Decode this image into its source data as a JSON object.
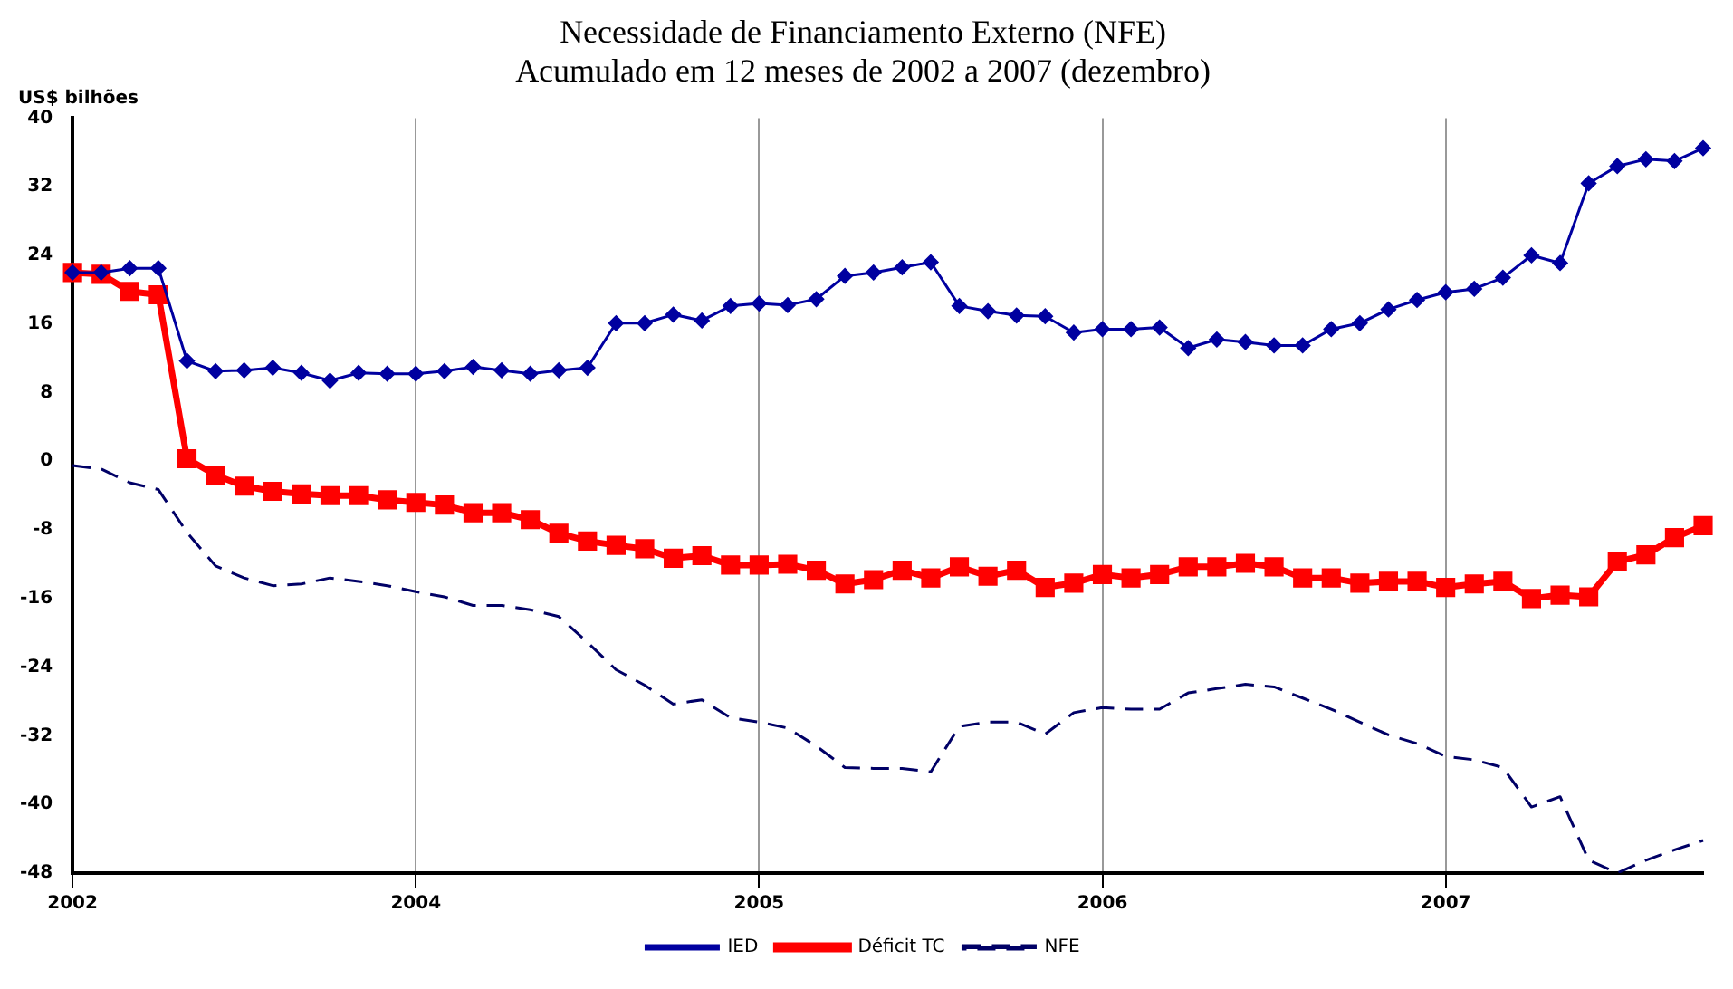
{
  "chart_data": {
    "type": "line",
    "title": "Necessidade de Financiamento Externo (NFE)",
    "subtitle": "Acumulado em 12 meses de 2002 a 2007 (dezembro)",
    "ylabel": "US$ bilhões",
    "categories": [
      "2002",
      null,
      null,
      null,
      null,
      null,
      null,
      null,
      null,
      null,
      null,
      null,
      "2004",
      null,
      null,
      null,
      null,
      null,
      null,
      null,
      null,
      null,
      null,
      null,
      "2005",
      null,
      null,
      null,
      null,
      null,
      null,
      null,
      null,
      null,
      null,
      null,
      "2006",
      null,
      null,
      null,
      null,
      null,
      null,
      null,
      null,
      null,
      null,
      null,
      "2007",
      null,
      null,
      null,
      null,
      null,
      null,
      null,
      null,
      null
    ],
    "series": [
      {
        "name": "IED",
        "color": "#0000a0",
        "marker": "diamond",
        "line_style": "solid",
        "values": [
          22.0,
          22.0,
          22.5,
          22.5,
          11.7,
          10.5,
          10.6,
          10.9,
          10.3,
          9.4,
          10.3,
          10.2,
          10.2,
          10.5,
          11.0,
          10.6,
          10.2,
          10.6,
          10.9,
          16.1,
          16.1,
          17.1,
          16.4,
          18.1,
          18.4,
          18.2,
          18.9,
          21.6,
          22.0,
          22.6,
          23.2,
          18.1,
          17.5,
          17.0,
          16.9,
          15.0,
          15.4,
          15.4,
          15.6,
          13.2,
          14.2,
          13.9,
          13.5,
          13.5,
          15.4,
          16.1,
          17.7,
          18.8,
          19.7,
          20.1,
          21.4,
          24.0,
          23.1,
          32.4,
          34.4,
          35.2,
          35.0,
          36.5
        ]
      },
      {
        "name": "Déficit TC",
        "color": "#ff0000",
        "marker": "square",
        "line_style": "solid",
        "values": [
          22.0,
          21.8,
          19.8,
          19.4,
          0.3,
          -1.6,
          -2.9,
          -3.5,
          -3.8,
          -4.0,
          -4.0,
          -4.5,
          -4.8,
          -5.1,
          -6.0,
          -6.0,
          -6.8,
          -8.4,
          -9.3,
          -9.8,
          -10.2,
          -11.3,
          -11.0,
          -12.1,
          -12.1,
          -12.0,
          -12.7,
          -14.3,
          -13.8,
          -12.7,
          -13.6,
          -12.3,
          -13.4,
          -12.7,
          -14.7,
          -14.2,
          -13.2,
          -13.6,
          -13.2,
          -12.3,
          -12.3,
          -11.9,
          -12.3,
          -13.6,
          -13.6,
          -14.2,
          -14.0,
          -14.0,
          -14.7,
          -14.3,
          -14.0,
          -16.0,
          -15.6,
          -15.8,
          -11.7,
          -10.9,
          -8.9,
          -7.5
        ]
      },
      {
        "name": "NFE",
        "color": "#000066",
        "marker": "none",
        "line_style": "dashed",
        "values": [
          -0.5,
          -0.9,
          -2.5,
          -3.3,
          -8.3,
          -12.2,
          -13.6,
          -14.5,
          -14.3,
          -13.6,
          -14.0,
          -14.5,
          -15.2,
          -15.8,
          -16.8,
          -16.8,
          -17.3,
          -18.1,
          -21.1,
          -24.3,
          -26.1,
          -28.3,
          -27.8,
          -29.9,
          -30.4,
          -31.1,
          -33.2,
          -35.7,
          -35.8,
          -35.8,
          -36.2,
          -30.9,
          -30.4,
          -30.4,
          -31.8,
          -29.3,
          -28.7,
          -28.9,
          -28.9,
          -27.0,
          -26.5,
          -26.0,
          -26.3,
          -27.6,
          -28.9,
          -30.4,
          -31.9,
          -32.9,
          -34.4,
          -34.8,
          -35.7,
          -40.3,
          -39.1,
          -46.5,
          -48.0,
          -46.5,
          -45.3,
          -44.2
        ]
      }
    ],
    "ylim": [
      -48,
      40
    ],
    "yticks": [
      -48,
      -40,
      -32,
      -24,
      -16,
      -8,
      0,
      8,
      16,
      24,
      32,
      40
    ],
    "grid": "x",
    "legend": "bottom"
  }
}
